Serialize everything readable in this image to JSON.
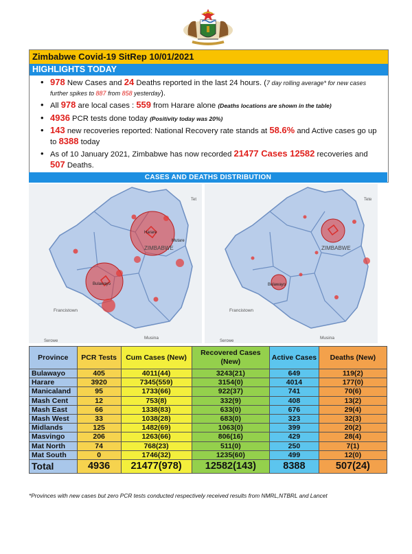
{
  "header": {
    "title": "Zimbabwe Covid-19 SitRep 10/01/2021",
    "highlights_label": "HIGHLIGHTS TODAY"
  },
  "highlights": {
    "b1": {
      "n1": "978",
      "t1": " New Cases and ",
      "n2": "24",
      "t2": " Deaths reported in the last 24 hours. (",
      "t3": "7 day rolling average* for new cases further spikes to ",
      "n3": "887",
      "t4": "  from ",
      "n4": "858",
      "t5": " yesterday",
      "t6": ")."
    },
    "b2": {
      "t1": "All ",
      "n1": "978",
      "t2": " are local cases : ",
      "n2": "559",
      "t3": " from Harare alone ",
      "t4": "(Deaths locations are shown in the table)"
    },
    "b3": {
      "n1": "4936",
      "t1": " PCR tests done today ",
      "t2": "(Positivity today was 20%)"
    },
    "b4": {
      "n1": "143",
      "t1": " new recoveries reported: National Recovery rate stands at ",
      "n2": "58.6%",
      "t2": " and Active cases go up to ",
      "n3": "8388",
      "t3": " today"
    },
    "b5": {
      "t1": "As of 10 January 2021, Zimbabwe has now recorded ",
      "n1": "21477",
      "t2": "  Cases ",
      "n2": "12582",
      "t3": " recoveries and ",
      "n3": "507",
      "t4": " Deaths."
    }
  },
  "distribution_label": "CASES AND DEATHS DISTRIBUTION",
  "maps": {
    "map1": {
      "country_label": "ZIMBABWE",
      "town_harare": "Harare",
      "town_mutare": "Mutare",
      "town_bulawayo": "Bulawayo",
      "town_francistown": "Francistown",
      "town_musina": "Musina",
      "town_serowe": "Serowe",
      "town_tete": "Tet"
    },
    "map2": {
      "country_label": "ZIMBABWE",
      "town_bulawayo": "Bulawayo",
      "town_francistown": "Francistown",
      "town_musina": "Musina",
      "town_serowe": "Serowe",
      "town_tete": "Tete"
    }
  },
  "table": {
    "headers": {
      "province": "Province",
      "pcr": "PCR Tests",
      "cum": "Cum Cases (New)",
      "rec": "Recovered Cases (New)",
      "act": "Active Cases",
      "dea": "Deaths (New)"
    },
    "rows": [
      {
        "province": "Bulawayo",
        "pcr": "405",
        "cum": "4011(44)",
        "rec": "3243(21)",
        "act": "649",
        "dea": "119(2)"
      },
      {
        "province": "Harare",
        "pcr": "3920",
        "cum": "7345(559)",
        "rec": "3154(0)",
        "act": "4014",
        "dea": "177(0)"
      },
      {
        "province": "Manicaland",
        "pcr": "95",
        "cum": "1733(66)",
        "rec": "922(37)",
        "act": "741",
        "dea": "70(6)"
      },
      {
        "province": "Mash Cent",
        "pcr": "12",
        "cum": "753(8)",
        "rec": "332(9)",
        "act": "408",
        "dea": "13(2)"
      },
      {
        "province": "Mash East",
        "pcr": "66",
        "cum": "1338(83)",
        "rec": "633(0)",
        "act": "676",
        "dea": "29(4)"
      },
      {
        "province": "Mash West",
        "pcr": "33",
        "cum": "1038(28)",
        "rec": "683(0)",
        "act": "323",
        "dea": "32(3)"
      },
      {
        "province": "Midlands",
        "pcr": "125",
        "cum": "1482(69)",
        "rec": "1063(0)",
        "act": "399",
        "dea": "20(2)"
      },
      {
        "province": "Masvingo",
        "pcr": "206",
        "cum": "1263(66)",
        "rec": "806(16)",
        "act": "429",
        "dea": "28(4)"
      },
      {
        "province": "Mat North",
        "pcr": "74",
        "cum": "768(23)",
        "rec": "511(0)",
        "act": "250",
        "dea": "7(1)"
      },
      {
        "province": "Mat South",
        "pcr": "0",
        "cum": "1746(32)",
        "rec": "1235(60)",
        "act": "499",
        "dea": "12(0)"
      }
    ],
    "total": {
      "province": "Total",
      "pcr": "4936",
      "cum": "21477(978)",
      "rec": "12582(143)",
      "act": "8388",
      "dea": "507(24)"
    }
  },
  "footnote": "*Provinces  with new cases but zero  PCR tests conducted respectively received results from NMRL,NTBRL and Lancet",
  "colors": {
    "title_bar": "#f9c200",
    "highlight_bar": "#1d8fe1",
    "emphasis_red": "#e0201c",
    "bubble_red": "#e53935"
  }
}
